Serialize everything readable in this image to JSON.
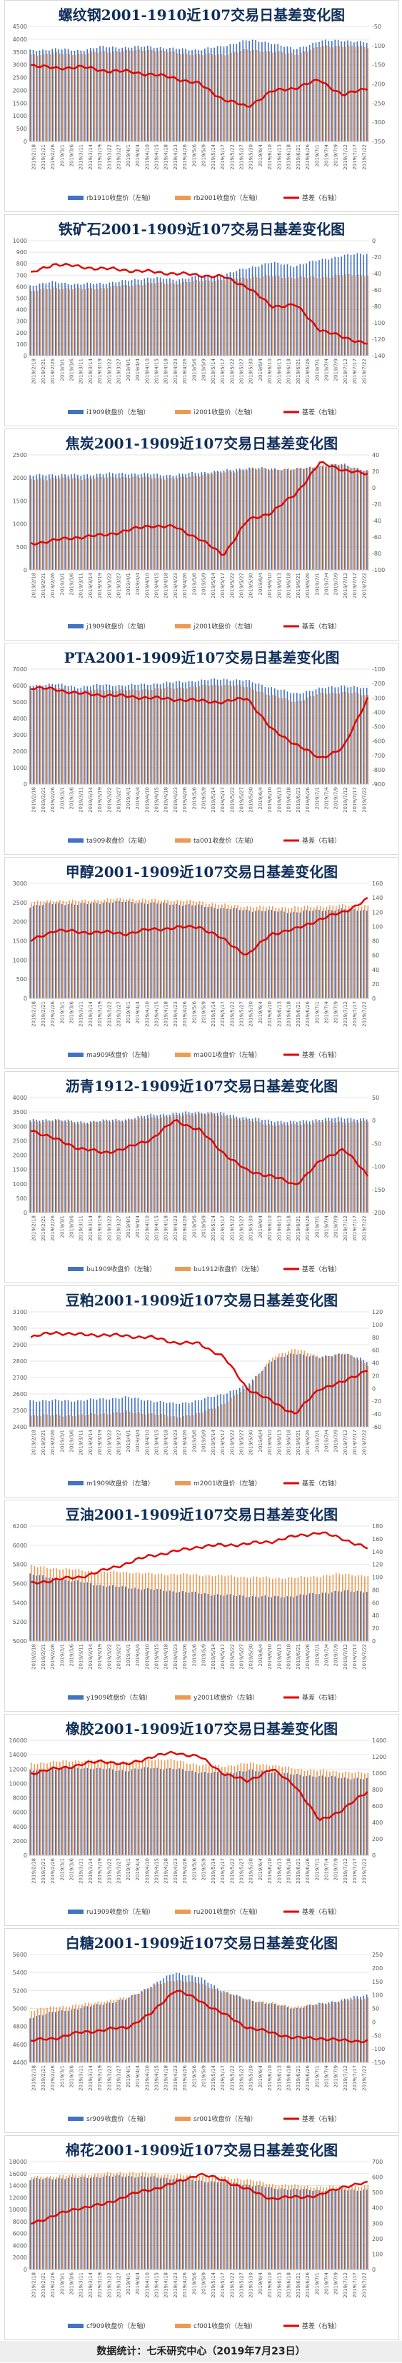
{
  "footer": {
    "text": "数据统计：七禾研究中心（2019年7月23日）"
  },
  "colors": {
    "near_bar": "#4472c4",
    "far_bar": "#ed9b54",
    "basis_line": "#e00000",
    "title": "#0f2e5a"
  },
  "x_dates": [
    "2019/2/18",
    "2019/2/21",
    "2019/2/26",
    "2019/3/1",
    "2019/3/6",
    "2019/3/11",
    "2019/3/14",
    "2019/3/19",
    "2019/3/22",
    "2019/3/27",
    "2019/4/1",
    "2019/4/4",
    "2019/4/10",
    "2019/4/15",
    "2019/4/18",
    "2019/4/23",
    "2019/4/26",
    "2019/5/6",
    "2019/5/9",
    "2019/5/14",
    "2019/5/17",
    "2019/5/22",
    "2019/5/27",
    "2019/5/30",
    "2019/6/4",
    "2019/6/10",
    "2019/6/13",
    "2019/6/18",
    "2019/6/21",
    "2019/6/26",
    "2019/7/1",
    "2019/7/4",
    "2019/7/9",
    "2019/7/12",
    "2019/7/17",
    "2019/7/22"
  ],
  "chart_data": [
    {
      "type": "bar",
      "title": "螺纹钢2001-1910近107交易日基差变化图",
      "ylim_left": [
        0,
        4500
      ],
      "left_ticks": [
        0,
        500,
        1000,
        1500,
        2000,
        2500,
        3000,
        3500,
        4000,
        4500
      ],
      "ylim_right": [
        -350,
        -50
      ],
      "right_ticks": [
        -350,
        -300,
        -250,
        -200,
        -150,
        -100,
        -50
      ],
      "legend": [
        "rb1910收盘价（左轴）",
        "rb2001收盘价（左轴）",
        "基差（右轴）"
      ],
      "near_anchors": [
        3550,
        3620,
        3560,
        3700,
        3680,
        3720,
        3620,
        3590,
        3720,
        3960,
        3870,
        3600,
        3920,
        3960,
        3860
      ],
      "far_anchors": [
        3400,
        3440,
        3420,
        3500,
        3540,
        3580,
        3460,
        3400,
        3400,
        3580,
        3510,
        3410,
        3700,
        3740,
        3680
      ],
      "basis_anchors": [
        -150,
        -160,
        -155,
        -165,
        -168,
        -175,
        -185,
        -200,
        -240,
        -260,
        -220,
        -210,
        -190,
        -230,
        -210
      ]
    },
    {
      "type": "bar",
      "title": "铁矿石2001-1909近107交易日基差变化图",
      "ylim_left": [
        0,
        1000
      ],
      "left_ticks": [
        0,
        100,
        200,
        300,
        400,
        500,
        600,
        700,
        800,
        900,
        1000
      ],
      "ylim_right": [
        -140,
        0
      ],
      "right_ticks": [
        -140,
        -120,
        -100,
        -80,
        -60,
        -40,
        -20,
        0
      ],
      "legend": [
        "i1909收盘价（左轴）",
        "i2001收盘价（左轴）",
        "基差（右轴）"
      ],
      "near_anchors": [
        610,
        640,
        620,
        630,
        650,
        680,
        660,
        690,
        700,
        760,
        810,
        780,
        830,
        870,
        890
      ],
      "far_anchors": [
        560,
        590,
        580,
        590,
        610,
        630,
        630,
        650,
        660,
        680,
        690,
        680,
        680,
        700,
        700
      ],
      "basis_anchors": [
        -40,
        -28,
        -32,
        -34,
        -36,
        -38,
        -40,
        -42,
        -44,
        -56,
        -80,
        -78,
        -108,
        -118,
        -125
      ]
    },
    {
      "type": "bar",
      "title": "焦炭2001-1909近107交易日基差变化图",
      "ylim_left": [
        0,
        2500
      ],
      "left_ticks": [
        0,
        500,
        1000,
        1500,
        2000,
        2500
      ],
      "ylim_right": [
        -100,
        40
      ],
      "right_ticks": [
        -100,
        -80,
        -60,
        -40,
        -20,
        0,
        20,
        40
      ],
      "legend": [
        "j1909收盘价（左轴）",
        "j2001收盘价（左轴）",
        "基差（右轴）"
      ],
      "near_anchors": [
        2050,
        2080,
        2060,
        2090,
        2100,
        2080,
        2060,
        2120,
        2150,
        2220,
        2200,
        2180,
        2250,
        2300,
        2150
      ],
      "far_anchors": [
        1960,
        1990,
        1980,
        2000,
        2020,
        2000,
        1980,
        2060,
        2120,
        2180,
        2190,
        2190,
        2270,
        2290,
        2140
      ],
      "basis_anchors": [
        -68,
        -64,
        -60,
        -58,
        -52,
        -46,
        -48,
        -62,
        -82,
        -40,
        -30,
        -8,
        30,
        22,
        16
      ]
    },
    {
      "type": "bar",
      "title": "PTA2001-1909近107交易日基差变化图",
      "ylim_left": [
        0,
        7000
      ],
      "left_ticks": [
        0,
        1000,
        2000,
        3000,
        4000,
        5000,
        6000,
        7000
      ],
      "ylim_right": [
        -900,
        -100
      ],
      "right_ticks": [
        -900,
        -800,
        -700,
        -600,
        -500,
        -400,
        -300,
        -200,
        -100
      ],
      "legend": [
        "ta909收盘价（左轴）",
        "ta001收盘价（左轴）",
        "基差（右轴）"
      ],
      "near_anchors": [
        6000,
        6100,
        5900,
        6050,
        6000,
        6100,
        6200,
        6300,
        6400,
        6300,
        5900,
        5500,
        5800,
        6000,
        5800
      ],
      "far_anchors": [
        5750,
        5850,
        5650,
        5750,
        5700,
        5800,
        5850,
        5950,
        6050,
        5900,
        5400,
        5000,
        5500,
        5600,
        5400
      ],
      "basis_anchors": [
        -230,
        -240,
        -270,
        -280,
        -290,
        -300,
        -310,
        -320,
        -330,
        -300,
        -520,
        -620,
        -720,
        -650,
        -300
      ]
    },
    {
      "type": "bar",
      "title": "甲醇2001-1909近107交易日基差变化图",
      "ylim_left": [
        0,
        3000
      ],
      "left_ticks": [
        0,
        500,
        1000,
        1500,
        2000,
        2500,
        3000
      ],
      "ylim_right": [
        0,
        160
      ],
      "right_ticks": [
        0,
        20,
        40,
        60,
        80,
        100,
        120,
        140,
        160
      ],
      "legend": [
        "ma909收盘价（左轴）",
        "ma001收盘价（左轴）",
        "基差（右轴）"
      ],
      "near_anchors": [
        2400,
        2480,
        2450,
        2500,
        2520,
        2480,
        2460,
        2420,
        2350,
        2300,
        2280,
        2250,
        2300,
        2320,
        2300
      ],
      "far_anchors": [
        2500,
        2560,
        2540,
        2580,
        2600,
        2570,
        2560,
        2520,
        2440,
        2400,
        2380,
        2380,
        2400,
        2430,
        2420
      ],
      "basis_anchors": [
        80,
        95,
        92,
        92,
        90,
        96,
        98,
        100,
        82,
        60,
        90,
        96,
        110,
        120,
        138
      ]
    },
    {
      "type": "bar",
      "title": "沥青1912-1909近107交易日基差变化图",
      "ylim_left": [
        0,
        4000
      ],
      "left_ticks": [
        0,
        500,
        1000,
        1500,
        2000,
        2500,
        3000,
        3500,
        4000
      ],
      "ylim_right": [
        -200,
        50
      ],
      "right_ticks": [
        -200,
        -150,
        -100,
        -50,
        0,
        50
      ],
      "legend": [
        "bu1909收盘价（左轴）",
        "bu1912收盘价（左轴）",
        "基差（右轴）"
      ],
      "near_anchors": [
        3200,
        3250,
        3150,
        3200,
        3250,
        3400,
        3450,
        3500,
        3450,
        3300,
        3200,
        3150,
        3250,
        3300,
        3250
      ],
      "far_anchors": [
        3150,
        3200,
        3100,
        3150,
        3200,
        3300,
        3350,
        3450,
        3350,
        3200,
        3050,
        3050,
        3150,
        3150,
        3150
      ],
      "basis_anchors": [
        -20,
        -40,
        -60,
        -70,
        -60,
        -40,
        0,
        -20,
        -70,
        -110,
        -120,
        -140,
        -90,
        -60,
        -120
      ]
    },
    {
      "type": "bar",
      "title": "豆粕2001-1909近107交易日基差变化图",
      "ylim_left": [
        2400,
        3100
      ],
      "left_ticks": [
        2400,
        2500,
        2600,
        2700,
        2800,
        2900,
        3000,
        3100
      ],
      "ylim_right": [
        -60,
        120
      ],
      "right_ticks": [
        -60,
        -40,
        -20,
        0,
        20,
        40,
        60,
        80,
        100,
        120
      ],
      "legend": [
        "m1909收盘价（左轴）",
        "m2001收盘价（左轴）",
        "基差（右轴）"
      ],
      "near_anchors": [
        2560,
        2560,
        2560,
        2570,
        2580,
        2560,
        2540,
        2560,
        2600,
        2650,
        2800,
        2850,
        2820,
        2850,
        2800
      ],
      "far_anchors": [
        2470,
        2470,
        2470,
        2480,
        2490,
        2480,
        2460,
        2480,
        2540,
        2640,
        2820,
        2880,
        2820,
        2850,
        2780
      ],
      "basis_anchors": [
        80,
        88,
        84,
        84,
        82,
        80,
        72,
        70,
        50,
        0,
        -20,
        -40,
        0,
        10,
        30
      ]
    },
    {
      "type": "bar",
      "title": "豆油2001-1909近107交易日基差变化图",
      "ylim_left": [
        5000,
        6200
      ],
      "left_ticks": [
        5000,
        5200,
        5400,
        5600,
        5800,
        6000,
        6200
      ],
      "ylim_right": [
        0,
        180
      ],
      "right_ticks": [
        0,
        20,
        40,
        60,
        80,
        100,
        120,
        140,
        160,
        180
      ],
      "legend": [
        "y1909收盘价（左轴）",
        "y2001收盘价（左轴）",
        "基差（右轴）"
      ],
      "near_anchors": [
        5700,
        5650,
        5620,
        5580,
        5560,
        5540,
        5520,
        5500,
        5480,
        5470,
        5460,
        5470,
        5500,
        5520,
        5520
      ],
      "far_anchors": [
        5780,
        5760,
        5740,
        5720,
        5720,
        5700,
        5700,
        5690,
        5680,
        5670,
        5660,
        5660,
        5680,
        5700,
        5680
      ],
      "basis_anchors": [
        90,
        96,
        100,
        110,
        122,
        134,
        140,
        148,
        150,
        152,
        156,
        164,
        170,
        160,
        145
      ]
    },
    {
      "type": "bar",
      "title": "橡胶2001-1909近107交易日基差变化图",
      "ylim_left": [
        0,
        16000
      ],
      "left_ticks": [
        0,
        2000,
        4000,
        6000,
        8000,
        10000,
        12000,
        14000,
        16000
      ],
      "ylim_right": [
        0,
        1400
      ],
      "right_ticks": [
        0,
        200,
        400,
        600,
        800,
        1000,
        1200,
        1400
      ],
      "legend": [
        "ru1909收盘价（左轴）",
        "ru2001收盘价（左轴）",
        "基差（右轴）"
      ],
      "near_anchors": [
        11800,
        12000,
        12200,
        12000,
        11800,
        12200,
        12000,
        11600,
        11400,
        11800,
        11600,
        11200,
        11000,
        10800,
        10600
      ],
      "far_anchors": [
        12800,
        13000,
        13200,
        13200,
        13000,
        13400,
        13200,
        12600,
        12400,
        12800,
        12600,
        12000,
        11800,
        11600,
        11400
      ],
      "basis_anchors": [
        1000,
        1050,
        1100,
        1150,
        1100,
        1200,
        1250,
        1200,
        1000,
        900,
        1050,
        850,
        420,
        560,
        780
      ]
    },
    {
      "type": "bar",
      "title": "白糖2001-1909近107交易日基差变化图",
      "ylim_left": [
        4400,
        5600
      ],
      "left_ticks": [
        4400,
        4600,
        4800,
        5000,
        5200,
        5400,
        5600
      ],
      "ylim_right": [
        -150,
        250
      ],
      "right_ticks": [
        -150,
        -100,
        -50,
        0,
        50,
        100,
        150,
        200,
        250
      ],
      "legend": [
        "sr909收盘价（左轴）",
        "sr001收盘价（左轴）",
        "基差（右轴）"
      ],
      "near_anchors": [
        4900,
        4960,
        5000,
        5050,
        5100,
        5250,
        5400,
        5350,
        5200,
        5100,
        5050,
        5000,
        5050,
        5100,
        5150
      ],
      "far_anchors": [
        4980,
        5020,
        5040,
        5080,
        5120,
        5240,
        5320,
        5280,
        5180,
        5100,
        5060,
        5020,
        5050,
        5080,
        5120
      ],
      "basis_anchors": [
        -70,
        -60,
        -40,
        -30,
        -20,
        30,
        120,
        80,
        30,
        -20,
        -40,
        -60,
        -60,
        -70,
        -70
      ]
    },
    {
      "type": "bar",
      "title": "棉花2001-1909近107交易日基差变化图",
      "ylim_left": [
        0,
        18000
      ],
      "left_ticks": [
        0,
        2000,
        4000,
        6000,
        8000,
        10000,
        12000,
        14000,
        16000,
        18000
      ],
      "ylim_right": [
        0,
        700
      ],
      "right_ticks": [
        0,
        100,
        200,
        300,
        400,
        500,
        600,
        700
      ],
      "legend": [
        "cf909收盘价（左轴）",
        "cf001收盘价（左轴）",
        "基差（右轴）"
      ],
      "near_anchors": [
        15000,
        15200,
        15300,
        15500,
        15600,
        15400,
        15200,
        14800,
        14600,
        14200,
        13600,
        13400,
        13200,
        13300,
        13300
      ],
      "far_anchors": [
        15400,
        15600,
        15800,
        16000,
        16200,
        16000,
        15800,
        15600,
        15400,
        15000,
        14200,
        14000,
        13800,
        13900,
        13900
      ],
      "basis_anchors": [
        300,
        350,
        400,
        420,
        480,
        520,
        560,
        620,
        580,
        520,
        460,
        470,
        480,
        540,
        560
      ]
    }
  ]
}
